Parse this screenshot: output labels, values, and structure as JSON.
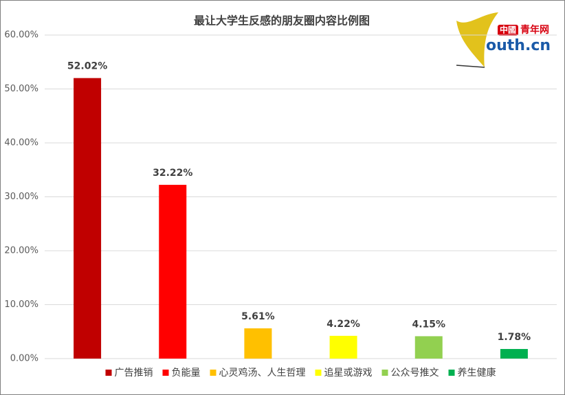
{
  "chart_data": {
    "type": "bar",
    "title": "最让大学生反感的朋友圈内容比例图",
    "categories": [
      "广告推销",
      "负能量",
      "心灵鸡汤、人生哲理",
      "追星或游戏",
      "公众号推文",
      "养生健康"
    ],
    "values": [
      52.02,
      32.22,
      5.61,
      4.22,
      4.15,
      1.78
    ],
    "value_labels": [
      "52.02%",
      "32.22%",
      "5.61%",
      "4.22%",
      "4.15%",
      "1.78%"
    ],
    "colors": [
      "#c00000",
      "#ff0000",
      "#ffc000",
      "#ffff00",
      "#92d050",
      "#00b050"
    ],
    "ylim": [
      0,
      60
    ],
    "yticks": [
      {
        "value": 0,
        "label": "0.00%"
      },
      {
        "value": 10,
        "label": "10.00%"
      },
      {
        "value": 20,
        "label": "20.00%"
      },
      {
        "value": 30,
        "label": "30.00%"
      },
      {
        "value": 40,
        "label": "40.00%"
      },
      {
        "value": 50,
        "label": "50.00%"
      },
      {
        "value": 60,
        "label": "60.00%"
      }
    ],
    "grid": true,
    "legend": "bottom"
  },
  "logo": {
    "mark": "中國",
    "name": "青年网",
    "site": "outh.cn"
  }
}
